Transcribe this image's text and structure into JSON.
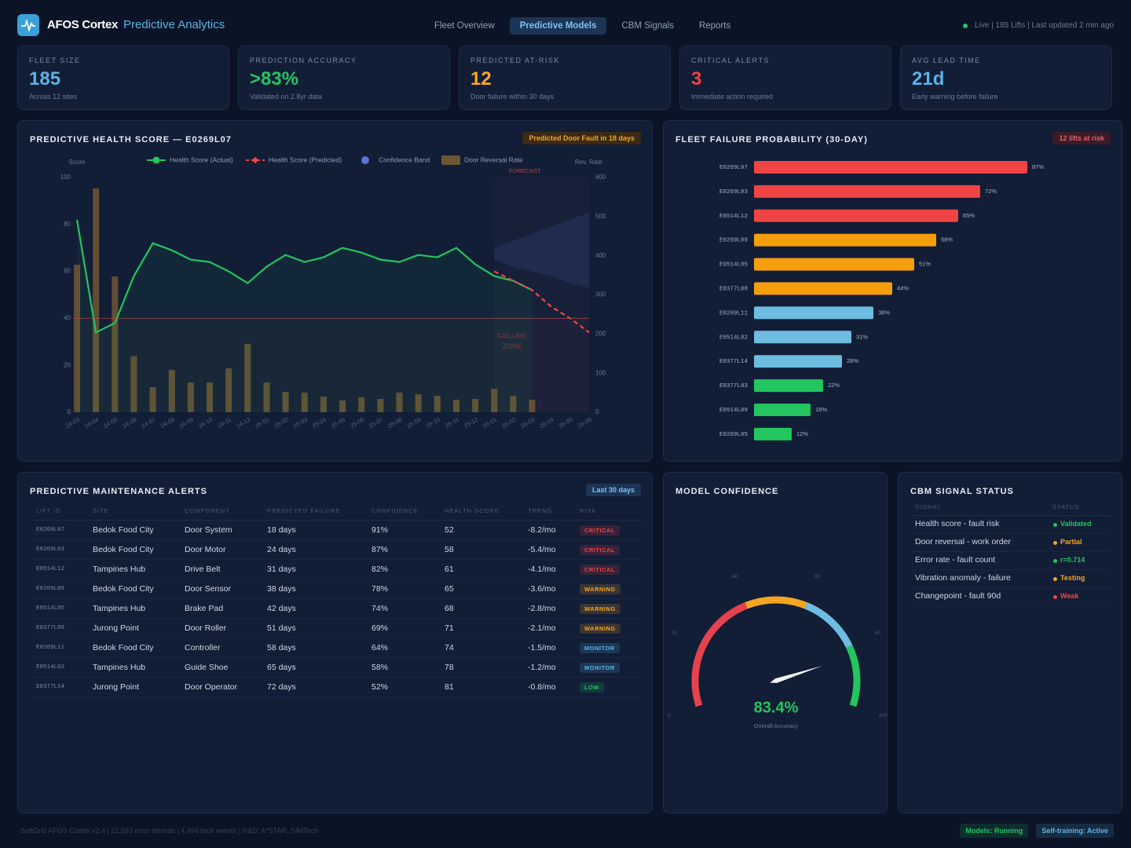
{
  "header": {
    "brand": "AFOS Cortex",
    "product": "Predictive Analytics"
  },
  "nav": {
    "items": [
      "Fleet Overview",
      "Predictive Models",
      "CBM Signals",
      "Reports"
    ],
    "active": 1
  },
  "status": "Live | 185 Lifts | Last updated 2 min ago",
  "kpis": [
    {
      "label": "FLEET SIZE",
      "value": 185,
      "sub": "Across 12 sites",
      "color": "#5ab4e6"
    },
    {
      "label": "PREDICTION ACCURACY",
      "value": ">83%",
      "sub": "Validated on 2.8yr data",
      "color": "#22c55e"
    },
    {
      "label": "PREDICTED AT-RISK",
      "value": 12,
      "sub": "Door failure within 30 days",
      "color": "#f5a524"
    },
    {
      "label": "CRITICAL ALERTS",
      "value": 3,
      "sub": "Immediate action required",
      "color": "#ef4444"
    },
    {
      "label": "AVG LEAD TIME",
      "value": "21d",
      "sub": "Early warning before failure",
      "color": "#5ab4e6"
    }
  ],
  "chart_data": [
    {
      "type": "combo",
      "title": "PREDICTIVE HEALTH SCORE — E0269L07",
      "badge": "Predicted Door Fault in 18 days",
      "ylabel": "Score",
      "y2label": "Rev. Rate",
      "categories": [
        "24-03",
        "24-04",
        "24-05",
        "24-06",
        "24-07",
        "24-08",
        "24-09",
        "24-10",
        "24-11",
        "24-12",
        "25-01",
        "25-02",
        "25-03",
        "25-04",
        "25-05",
        "25-06",
        "25-07",
        "25-08",
        "25-09",
        "25-10",
        "25-11",
        "25-12",
        "26-01",
        "26-02",
        "26-03",
        "26-04",
        "26-05",
        "26-06"
      ],
      "ylim": [
        0,
        100
      ],
      "yticks": [
        0,
        20,
        40,
        60,
        80,
        100
      ],
      "y2lim": [
        0,
        600
      ],
      "y2ticks": [
        0,
        100,
        200,
        300,
        400,
        500,
        600
      ],
      "threshold": 40,
      "annotations": [
        "FORECAST",
        "FAILURE ZONE"
      ],
      "series": [
        {
          "name": "Health Score (Actual)",
          "mark": "line",
          "color": "#22c55e",
          "values": [
            82,
            34,
            38,
            58,
            72,
            69,
            65,
            64,
            60,
            55,
            62,
            67,
            64,
            66,
            70,
            68,
            65,
            64,
            67,
            66,
            70,
            63,
            58,
            56,
            52,
            null,
            null,
            null
          ]
        },
        {
          "name": "Health Score (Predicted)",
          "mark": "dashed-line",
          "color": "#ef4444",
          "values": [
            null,
            null,
            null,
            null,
            null,
            null,
            null,
            null,
            null,
            null,
            null,
            null,
            null,
            null,
            null,
            null,
            null,
            null,
            null,
            null,
            null,
            null,
            60,
            56,
            52,
            45,
            40,
            34
          ]
        },
        {
          "name": "Confidence Band",
          "mark": "band",
          "color": "#5b74d6",
          "upper": [
            null,
            null,
            null,
            null,
            null,
            null,
            null,
            null,
            null,
            null,
            null,
            null,
            null,
            null,
            null,
            null,
            null,
            null,
            null,
            null,
            null,
            null,
            70,
            73,
            76,
            79,
            82,
            85
          ],
          "lower": [
            null,
            null,
            null,
            null,
            null,
            null,
            null,
            null,
            null,
            null,
            null,
            null,
            null,
            null,
            null,
            null,
            null,
            null,
            null,
            null,
            null,
            null,
            65,
            62,
            60,
            58,
            55,
            53
          ]
        },
        {
          "name": "Door Reversal Rate",
          "mark": "bar",
          "axis": "y2",
          "color": "#6e5633",
          "values": [
            377,
            572,
            347,
            143,
            64,
            108,
            76,
            76,
            112,
            175,
            76,
            52,
            50,
            40,
            30,
            38,
            34,
            50,
            46,
            42,
            32,
            34,
            60,
            42,
            32,
            null,
            null,
            null
          ]
        }
      ]
    },
    {
      "type": "hbar",
      "title": "FLEET FAILURE PROBABILITY (30-DAY)",
      "badge": "12 lifts at risk",
      "categories": [
        "E0269L07",
        "E0269L03",
        "E0514L12",
        "E0269L09",
        "E0514L05",
        "E0377L08",
        "E0269L11",
        "E0514L02",
        "E0377L14",
        "E0377L03",
        "E0514L09",
        "E0269L05"
      ],
      "values": [
        87,
        72,
        65,
        58,
        51,
        44,
        38,
        31,
        28,
        22,
        18,
        12
      ],
      "value_labels": [
        "87%",
        "72%",
        "65%",
        "58%",
        "51%",
        "44%",
        "38%",
        "31%",
        "28%",
        "22%",
        "18%",
        "12%"
      ],
      "colors": [
        "#ef4444",
        "#ef4444",
        "#ef4444",
        "#f59e0b",
        "#f59e0b",
        "#f59e0b",
        "#6cbde0",
        "#6cbde0",
        "#6cbde0",
        "#22c55e",
        "#22c55e",
        "#22c55e"
      ],
      "xlim": [
        0,
        100
      ]
    },
    {
      "type": "gauge",
      "title": "MODEL CONFIDENCE",
      "value": 83.4,
      "value_label": "83.4%",
      "subtitle": "Overall Accuracy",
      "color": "#22c55e",
      "lim": [
        0,
        100
      ],
      "ticks": [
        0,
        20,
        40,
        60,
        80,
        100
      ],
      "bands": [
        {
          "from": 0,
          "to": 40,
          "color": "#e5424d"
        },
        {
          "from": 40,
          "to": 60,
          "color": "#f5a524"
        },
        {
          "from": 60,
          "to": 80,
          "color": "#6cbde0"
        },
        {
          "from": 80,
          "to": 100,
          "color": "#22c55e"
        }
      ]
    }
  ],
  "alerts": {
    "title": "PREDICTIVE MAINTENANCE ALERTS",
    "badge": "Last 30 days",
    "columns": [
      "LIFT ID",
      "SITE",
      "COMPONENT",
      "PREDICTED FAILURE",
      "CONFIDENCE",
      "HEALTH SCORE",
      "TREND",
      "RISK"
    ],
    "rows": [
      [
        "E0269L07",
        "Bedok Food City",
        "Door System",
        "18 days",
        "91%",
        52,
        "-8.2/mo",
        "CRITICAL"
      ],
      [
        "E0269L03",
        "Bedok Food City",
        "Door Motor",
        "24 days",
        "87%",
        58,
        "-5.4/mo",
        "CRITICAL"
      ],
      [
        "E0514L12",
        "Tampines Hub",
        "Drive Belt",
        "31 days",
        "82%",
        61,
        "-4.1/mo",
        "CRITICAL"
      ],
      [
        "E0269L09",
        "Bedok Food City",
        "Door Sensor",
        "38 days",
        "78%",
        65,
        "-3.6/mo",
        "WARNING"
      ],
      [
        "E0514L05",
        "Tampines Hub",
        "Brake Pad",
        "42 days",
        "74%",
        68,
        "-2.8/mo",
        "WARNING"
      ],
      [
        "E0377L08",
        "Jurong Point",
        "Door Roller",
        "51 days",
        "69%",
        71,
        "-2.1/mo",
        "WARNING"
      ],
      [
        "E0269L11",
        "Bedok Food City",
        "Controller",
        "58 days",
        "64%",
        74,
        "-1.5/mo",
        "MONITOR"
      ],
      [
        "E0514L02",
        "Tampines Hub",
        "Guide Shoe",
        "65 days",
        "58%",
        78,
        "-1.2/mo",
        "MONITOR"
      ],
      [
        "E0377L14",
        "Jurong Point",
        "Door Operator",
        "72 days",
        "52%",
        81,
        "-0.8/mo",
        "LOW"
      ]
    ],
    "risk_colors": [
      "#ef4444",
      "#ef4444",
      "#ef4444",
      "#f5a524",
      "#f5a524",
      "#f5a524",
      "#5ab4e6",
      "#5ab4e6",
      "#22c55e"
    ]
  },
  "cbm": {
    "title": "CBM SIGNAL STATUS",
    "columns": [
      "SIGNAL",
      "STATUS"
    ],
    "rows": [
      [
        "Health score - fault risk",
        "Validated"
      ],
      [
        "Door reversal - work order",
        "Partial"
      ],
      [
        "Error rate - fault count",
        "r=0.714"
      ],
      [
        "Vibration anomaly - failure",
        "Testing"
      ],
      [
        "Changepoint - fault 90d",
        "Weak"
      ]
    ],
    "status_colors": [
      "#22c55e",
      "#f5a524",
      "#22c55e",
      "#f5a524",
      "#ef4444"
    ]
  },
  "footer": {
    "text": "SoftGrid AFOS Cortex v2.4 | 21,593 error records | 4,494 fault events | R&D: A*STAR, SIMTech",
    "badges": [
      "Models: Running",
      "Self-training: Active"
    ],
    "badge_colors": [
      "#22c55e",
      "#5ab4e6"
    ]
  }
}
